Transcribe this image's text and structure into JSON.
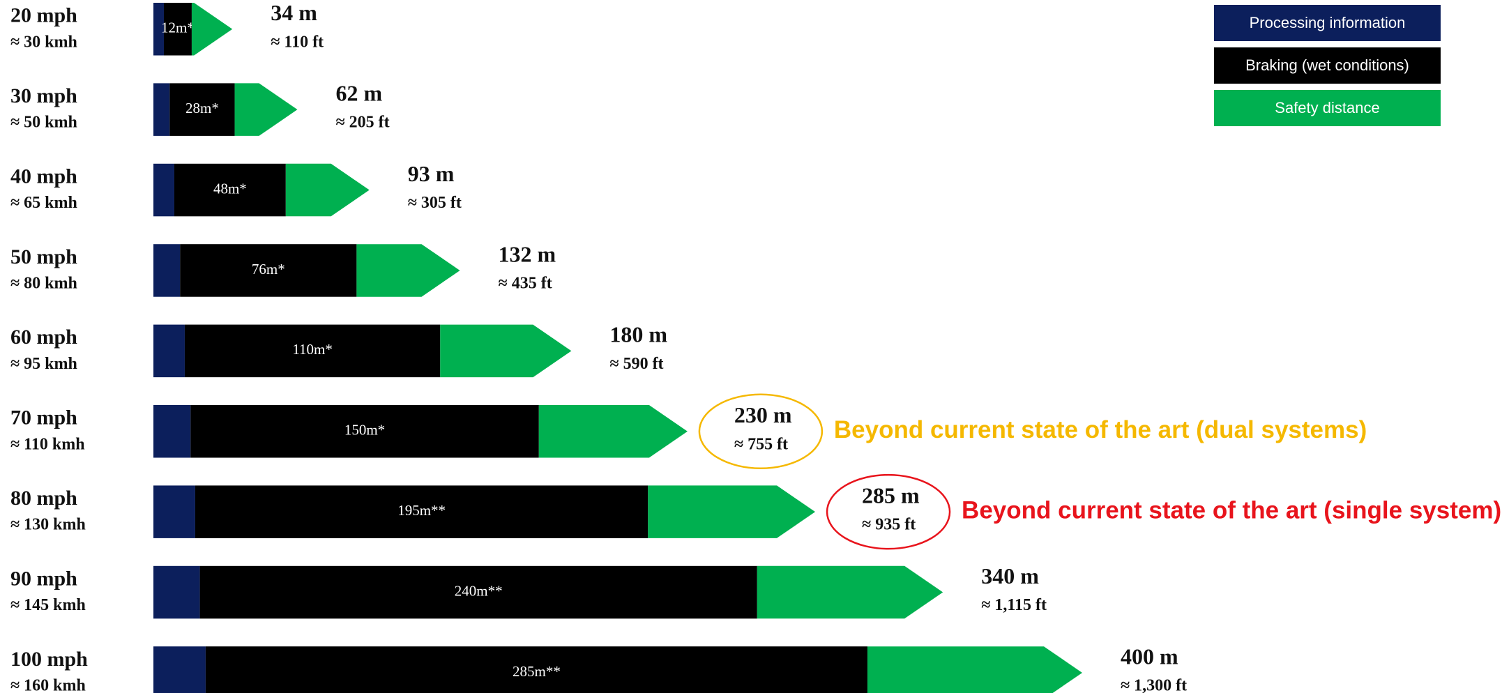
{
  "chart_data": {
    "type": "bar",
    "orientation": "horizontal",
    "stacked": true,
    "categories": [
      "20 mph",
      "30 mph",
      "40 mph",
      "50 mph",
      "60 mph",
      "70 mph",
      "80 mph",
      "90 mph",
      "100 mph"
    ],
    "subcategories": [
      "≈ 30 kmh",
      "≈ 50 kmh",
      "≈ 65 kmh",
      "≈ 80 kmh",
      "≈ 95 kmh",
      "≈ 110 kmh",
      "≈ 130 kmh",
      "≈ 145 kmh",
      "≈ 160 kmh"
    ],
    "series": [
      {
        "name": "Processing information",
        "color": "#0c1f5c",
        "values": [
          4.5,
          7,
          9,
          11.5,
          13.5,
          16,
          18,
          20,
          22.5
        ]
      },
      {
        "name": "Braking (wet conditions)",
        "color": "#000000",
        "values": [
          12,
          28,
          48,
          76,
          110,
          150,
          195,
          240,
          285
        ],
        "value_labels": [
          "12m*",
          "28m*",
          "48m*",
          "76m*",
          "110m*",
          "150m*",
          "195m**",
          "240m**",
          "285m**"
        ]
      },
      {
        "name": "Safety distance",
        "color": "#00b050",
        "values": [
          17.5,
          27,
          36,
          44.5,
          56.5,
          64,
          72,
          80,
          92.5
        ]
      }
    ],
    "totals": [
      34,
      62,
      93,
      132,
      180,
      230,
      285,
      340,
      400
    ],
    "total_labels": [
      "34 m",
      "62 m",
      "93 m",
      "132 m",
      "180 m",
      "230 m",
      "285 m",
      "340 m",
      "400 m"
    ],
    "total_sublabels": [
      "≈ 110 ft",
      "≈ 205 ft",
      "≈ 305 ft",
      "≈ 435 ft",
      "≈ 590 ft",
      "≈ 755 ft",
      "≈ 935 ft",
      "≈ 1,115 ft",
      "≈ 1,300 ft"
    ],
    "annotations": [
      null,
      null,
      null,
      null,
      null,
      "Beyond current state of the art (dual systems)",
      "Beyond current state of the art (single system)",
      null,
      null
    ],
    "annotation_colors": [
      null,
      null,
      null,
      null,
      null,
      "#f5b800",
      "#e8141c",
      null,
      null
    ],
    "legend": "top-right"
  }
}
